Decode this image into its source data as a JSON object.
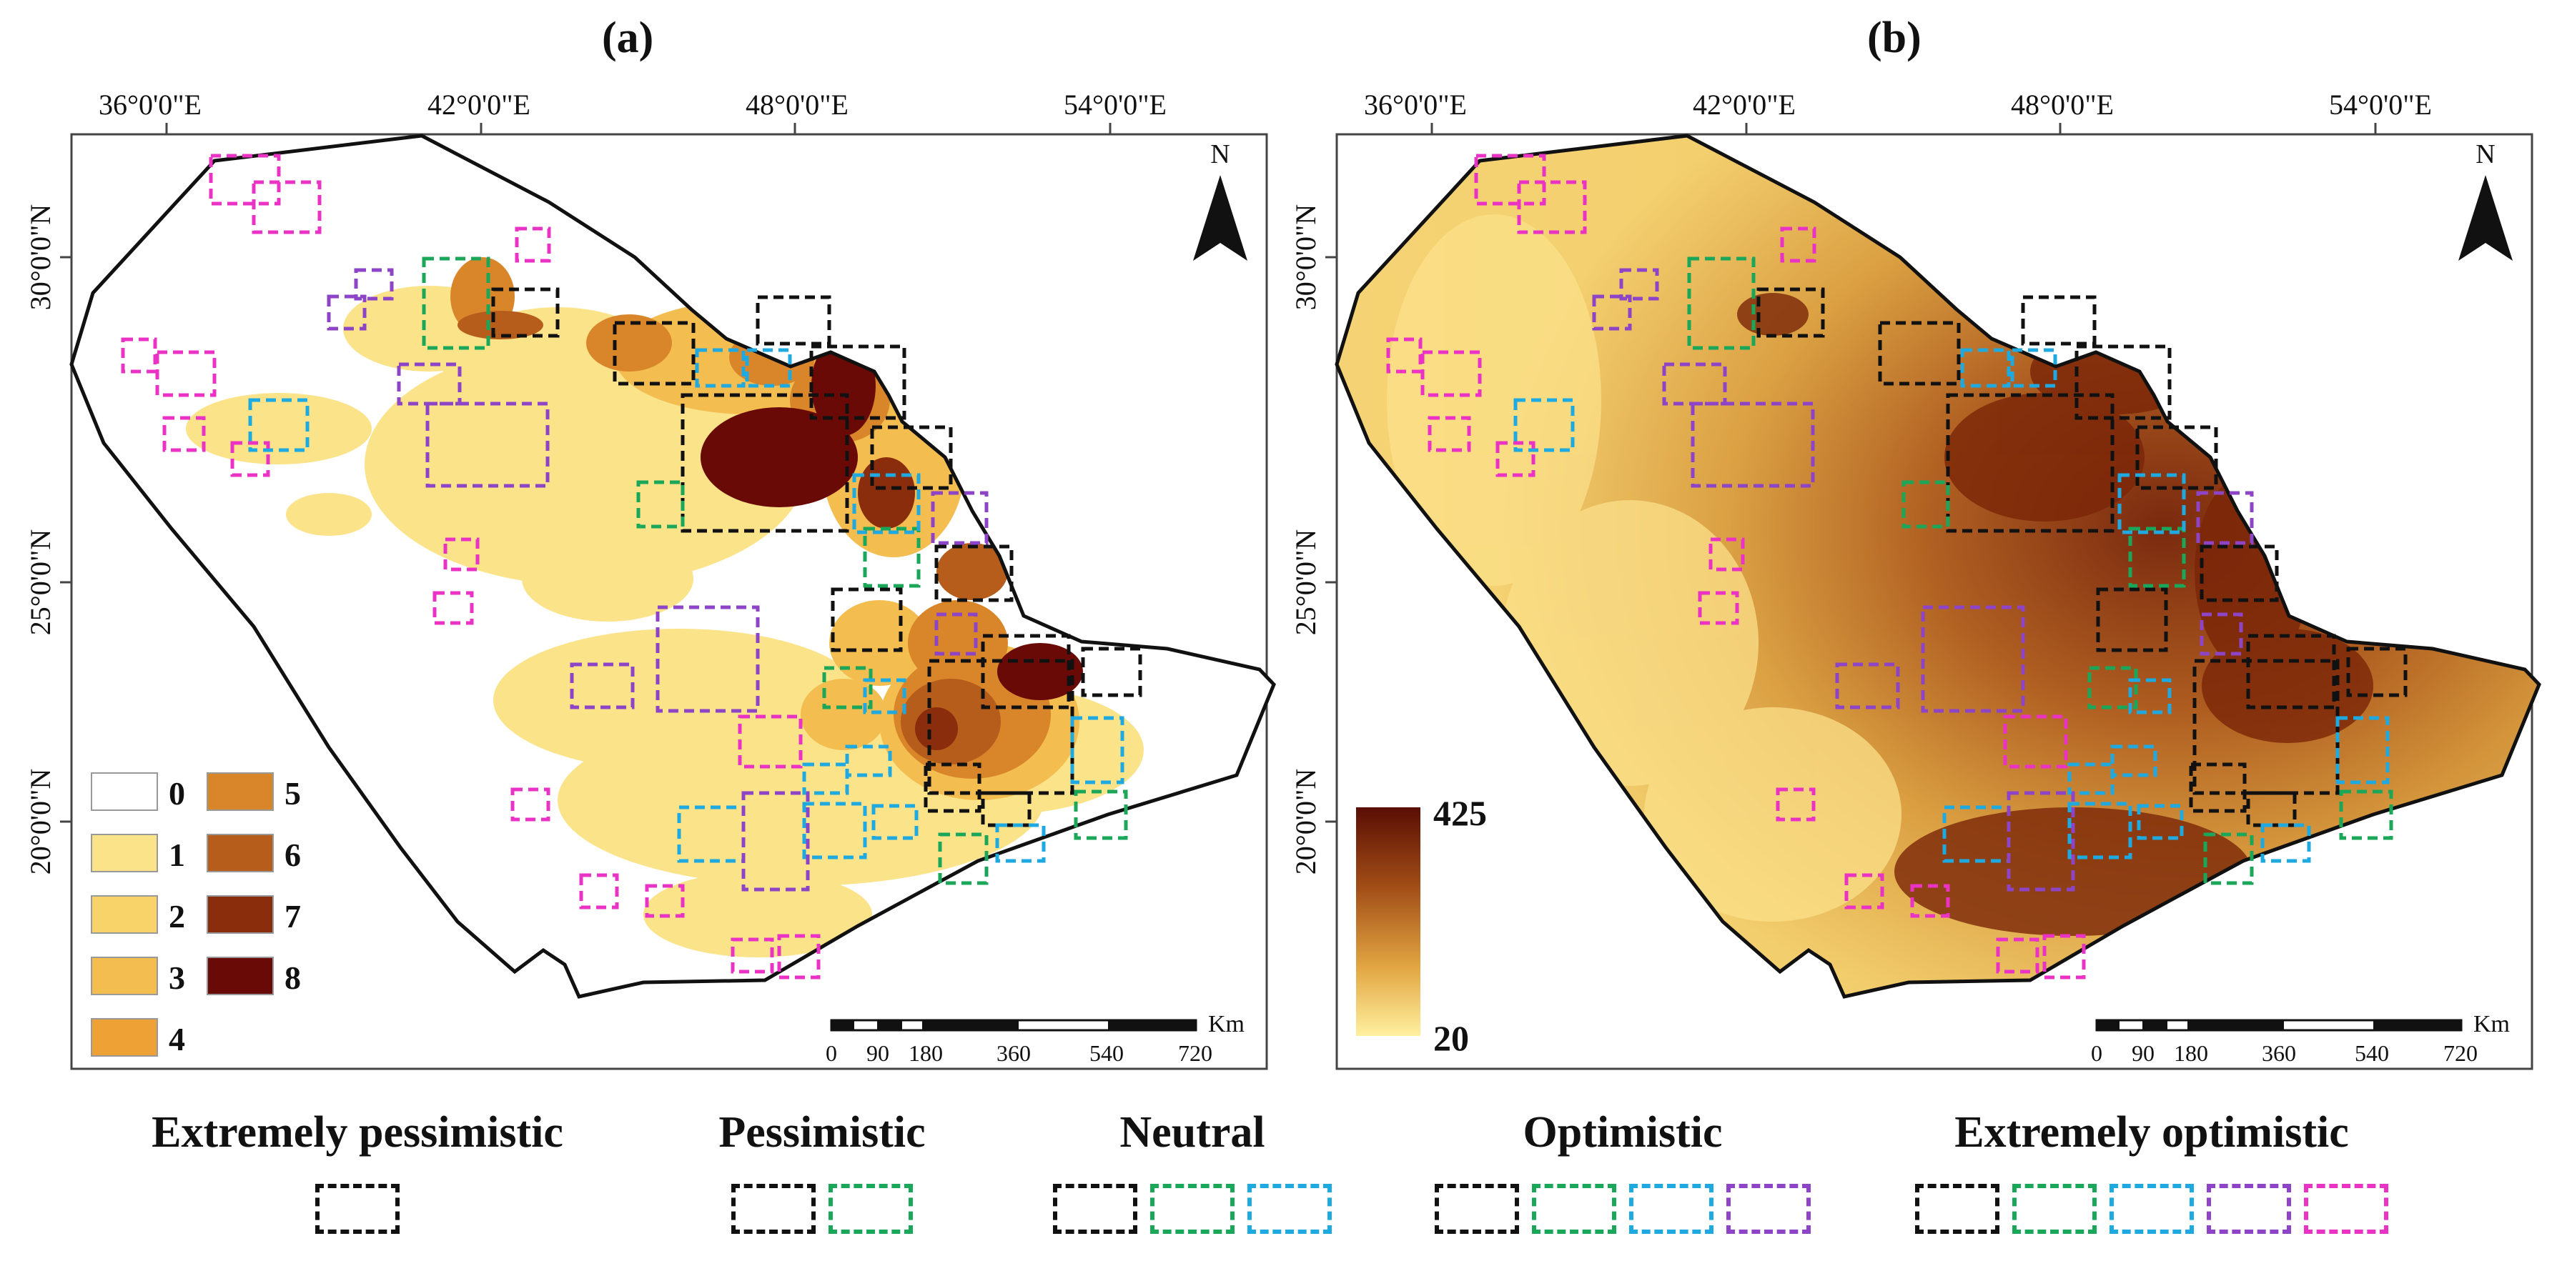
{
  "panels": [
    {
      "label": "(a)"
    },
    {
      "label": "(b)"
    }
  ],
  "axes": {
    "x_ticks": [
      "36°0'0\"E",
      "42°0'0\"E",
      "48°0'0\"E",
      "54°0'0\"E"
    ],
    "y_ticks": [
      "30°0'0\"N",
      "25°0'0\"N",
      "20°0'0\"N"
    ],
    "north_label": "N"
  },
  "scale_bar": {
    "unit": "Km",
    "ticks": [
      "0",
      "90",
      "180",
      "360",
      "540",
      "720"
    ]
  },
  "panel_a_legend": {
    "classes": [
      {
        "value": "0",
        "color": "#ffffff"
      },
      {
        "value": "1",
        "color": "#fbe38a"
      },
      {
        "value": "2",
        "color": "#f8d36a"
      },
      {
        "value": "3",
        "color": "#f4bd4f"
      },
      {
        "value": "4",
        "color": "#eea236"
      },
      {
        "value": "5",
        "color": "#d9862a"
      },
      {
        "value": "6",
        "color": "#b65d1c"
      },
      {
        "value": "7",
        "color": "#8a2d0d"
      },
      {
        "value": "8",
        "color": "#6a0a06"
      }
    ]
  },
  "panel_b_legend": {
    "max": "425",
    "min": "20",
    "color_high": "#5a0e04",
    "color_low": "#fff0a0"
  },
  "scenario_colors": {
    "black": "#111111",
    "green": "#1aa75a",
    "cyan": "#1ea9e1",
    "purple": "#8e44c7",
    "magenta": "#ea33c4"
  },
  "scenarios": [
    {
      "label": "Extremely pessimistic",
      "colors": [
        "black"
      ]
    },
    {
      "label": "Pessimistic",
      "colors": [
        "black",
        "green"
      ]
    },
    {
      "label": "Neutral",
      "colors": [
        "black",
        "green",
        "cyan"
      ]
    },
    {
      "label": "Optimistic",
      "colors": [
        "black",
        "green",
        "cyan",
        "purple"
      ]
    },
    {
      "label": "Extremely optimistic",
      "colors": [
        "black",
        "green",
        "cyan",
        "purple",
        "magenta"
      ]
    }
  ]
}
